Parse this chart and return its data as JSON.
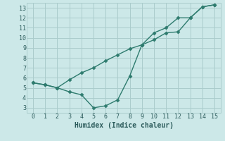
{
  "xlabel": "Humidex (Indice chaleur)",
  "background_color": "#cce8e8",
  "grid_color": "#aacccc",
  "line_color": "#2e7b6e",
  "line1_x": [
    0,
    1,
    2,
    3,
    4,
    5,
    6,
    7,
    8,
    9,
    10,
    11,
    12,
    13,
    14,
    15
  ],
  "line1_y": [
    5.5,
    5.3,
    5.0,
    4.6,
    4.3,
    3.0,
    3.2,
    3.8,
    6.2,
    9.3,
    9.8,
    10.5,
    10.6,
    12.0,
    13.1,
    13.3
  ],
  "line2_x": [
    0,
    1,
    2,
    3,
    4,
    5,
    6,
    7,
    8,
    9,
    10,
    11,
    12,
    13,
    14,
    15
  ],
  "line2_y": [
    5.5,
    5.3,
    5.0,
    5.8,
    6.5,
    7.0,
    7.7,
    8.3,
    8.9,
    9.3,
    10.5,
    11.0,
    12.0,
    12.0,
    13.1,
    13.3
  ],
  "xlim": [
    -0.5,
    15.5
  ],
  "ylim": [
    2.5,
    13.5
  ],
  "xticks": [
    0,
    1,
    2,
    3,
    4,
    5,
    6,
    7,
    8,
    9,
    10,
    11,
    12,
    13,
    14,
    15
  ],
  "yticks": [
    3,
    4,
    5,
    6,
    7,
    8,
    9,
    10,
    11,
    12,
    13
  ],
  "marker": "D",
  "markersize": 2.5,
  "linewidth": 1.0,
  "fontsize_axis": 6,
  "fontsize_xlabel": 7
}
